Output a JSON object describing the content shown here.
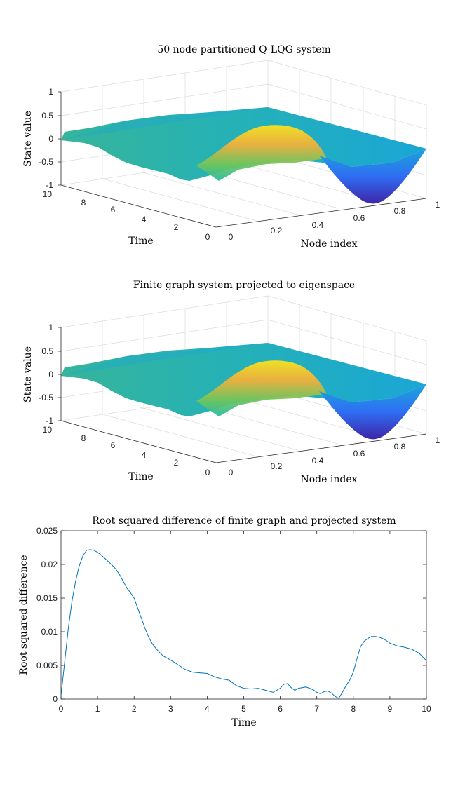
{
  "chart_data": [
    {
      "type": "surface",
      "title": "50 node partitioned Q-LQG system",
      "xlabel": "Node index",
      "ylabel": "Time",
      "zlabel": "State value",
      "x_ticks": [
        "0",
        "0.2",
        "0.4",
        "0.6",
        "0.8",
        "1"
      ],
      "y_ticks": [
        "0",
        "2",
        "4",
        "6",
        "8",
        "10"
      ],
      "z_ticks": [
        "-1",
        "-0.5",
        "0",
        "0.5",
        "1"
      ],
      "xlim": [
        0,
        1
      ],
      "ylim": [
        0,
        10
      ],
      "zlim": [
        -1,
        1
      ],
      "colormap": [
        "#3e26a8",
        "#2f6ef4",
        "#1aa6d6",
        "#27bca3",
        "#72c55a",
        "#c9c13a",
        "#f3b03a",
        "#fae21d"
      ],
      "grid": true
    },
    {
      "type": "surface",
      "title": "Finite graph system projected to eigenspace",
      "xlabel": "Node index",
      "ylabel": "Time",
      "zlabel": "State value",
      "x_ticks": [
        "0",
        "0.2",
        "0.4",
        "0.6",
        "0.8",
        "1"
      ],
      "y_ticks": [
        "0",
        "2",
        "4",
        "6",
        "8",
        "10"
      ],
      "z_ticks": [
        "-1",
        "-0.5",
        "0",
        "0.5",
        "1"
      ],
      "xlim": [
        0,
        1
      ],
      "ylim": [
        0,
        10
      ],
      "zlim": [
        -1,
        1
      ],
      "colormap": [
        "#3e26a8",
        "#2f6ef4",
        "#1aa6d6",
        "#27bca3",
        "#72c55a",
        "#c9c13a",
        "#f3b03a",
        "#fae21d"
      ],
      "grid": true
    },
    {
      "type": "line",
      "title": "Root squared difference of finite graph and projected system",
      "xlabel": "Time",
      "ylabel": "Root squared difference",
      "xlim": [
        0,
        10
      ],
      "ylim": [
        0,
        0.025
      ],
      "x_ticks": [
        "0",
        "1",
        "2",
        "3",
        "4",
        "5",
        "6",
        "7",
        "8",
        "9",
        "10"
      ],
      "y_ticks": [
        "0",
        "0.005",
        "0.01",
        "0.015",
        "0.02",
        "0.025"
      ],
      "color": "#0072bd",
      "series": [
        {
          "x": [
            0,
            0.1,
            0.2,
            0.3,
            0.4,
            0.5,
            0.6,
            0.7,
            0.8,
            0.9,
            1.0,
            1.1,
            1.2,
            1.3,
            1.4,
            1.5,
            1.6,
            1.7,
            1.8,
            1.9,
            2.0,
            2.1,
            2.2,
            2.3,
            2.4,
            2.5,
            2.6,
            2.7,
            2.8,
            2.9,
            3.0,
            3.2,
            3.4,
            3.6,
            3.8,
            4.0,
            4.2,
            4.4,
            4.6,
            4.8,
            5.0,
            5.2,
            5.4,
            5.6,
            5.8,
            6.0,
            6.1,
            6.2,
            6.3,
            6.4,
            6.5,
            6.6,
            6.7,
            6.8,
            6.9,
            7.0,
            7.1,
            7.2,
            7.3,
            7.4,
            7.5,
            7.6,
            7.7,
            7.8,
            7.9,
            8.0,
            8.1,
            8.2,
            8.3,
            8.4,
            8.5,
            8.6,
            8.7,
            8.8,
            8.9,
            9.0,
            9.2,
            9.4,
            9.6,
            9.8,
            10.0
          ],
          "y": [
            0.0005,
            0.0055,
            0.0105,
            0.0145,
            0.0175,
            0.0198,
            0.0213,
            0.0221,
            0.0222,
            0.0221,
            0.0218,
            0.0214,
            0.0209,
            0.0204,
            0.0199,
            0.0193,
            0.0185,
            0.0175,
            0.0165,
            0.0158,
            0.015,
            0.0135,
            0.012,
            0.0105,
            0.0092,
            0.0082,
            0.0075,
            0.0069,
            0.0064,
            0.0061,
            0.0058,
            0.0051,
            0.0044,
            0.004,
            0.0039,
            0.0038,
            0.0033,
            0.003,
            0.0028,
            0.002,
            0.0016,
            0.0015,
            0.0016,
            0.0013,
            0.001,
            0.0016,
            0.0022,
            0.0023,
            0.0017,
            0.0013,
            0.0016,
            0.0017,
            0.0018,
            0.0016,
            0.0014,
            0.001,
            0.0008,
            0.0011,
            0.0012,
            0.0009,
            0.0004,
            0.0001,
            0.001,
            0.002,
            0.0028,
            0.004,
            0.006,
            0.0078,
            0.0086,
            0.009,
            0.0093,
            0.0093,
            0.0092,
            0.009,
            0.0087,
            0.0083,
            0.0079,
            0.0077,
            0.0074,
            0.0068,
            0.0057
          ]
        }
      ]
    }
  ]
}
